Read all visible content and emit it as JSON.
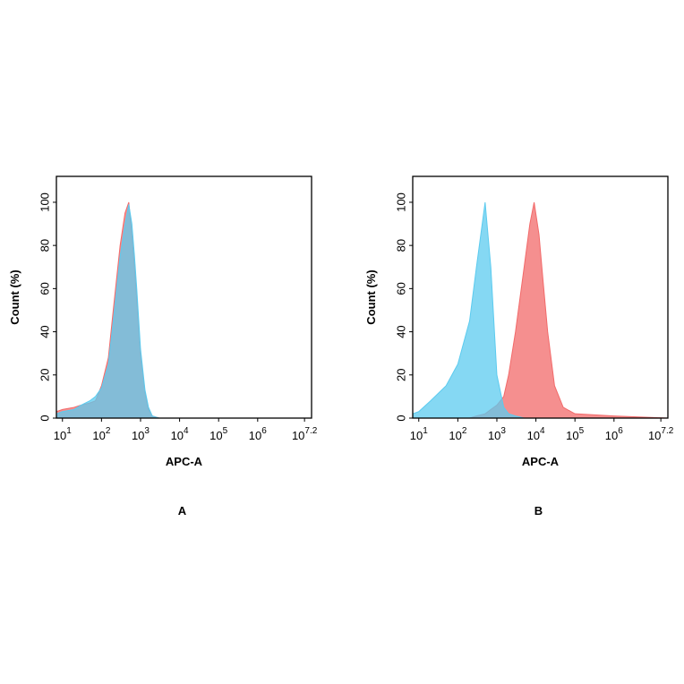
{
  "chart_data": [
    {
      "type": "area",
      "panel_label": "A",
      "xlabel": "APC-A",
      "ylabel": "Count  (%)",
      "xscale": "log",
      "xlim": [
        7,
        24000000
      ],
      "ylim": [
        0,
        112
      ],
      "xticks": [
        {
          "value": 10,
          "label": "10",
          "exponent": "1"
        },
        {
          "value": 100,
          "label": "10",
          "exponent": "2"
        },
        {
          "value": 1000,
          "label": "10",
          "exponent": "3"
        },
        {
          "value": 10000,
          "label": "10",
          "exponent": "4"
        },
        {
          "value": 100000,
          "label": "10",
          "exponent": "5"
        },
        {
          "value": 1000000,
          "label": "10",
          "exponent": "6"
        },
        {
          "value": 15848932,
          "label": "10",
          "exponent": "7.2"
        }
      ],
      "yticks": [
        0,
        20,
        40,
        60,
        80,
        100
      ],
      "x": [
        7,
        10,
        20,
        30,
        50,
        70,
        100,
        150,
        200,
        300,
        400,
        500,
        600,
        700,
        800,
        1000,
        1300,
        1600,
        2000,
        3000,
        10000,
        24000000
      ],
      "series": [
        {
          "color": "#f26a6a",
          "values": [
            3,
            4,
            5,
            6,
            7,
            8,
            15,
            28,
            50,
            80,
            95,
            100,
            85,
            70,
            55,
            30,
            12,
            4,
            1,
            0,
            0,
            0
          ]
        },
        {
          "color": "#5ccbef",
          "values": [
            2,
            3,
            4,
            6,
            8,
            10,
            14,
            25,
            45,
            75,
            90,
            99,
            90,
            75,
            60,
            32,
            13,
            5,
            1,
            0,
            0,
            0
          ]
        }
      ]
    },
    {
      "type": "area",
      "panel_label": "B",
      "xlabel": "APC-A",
      "ylabel": "Count  (%)",
      "xscale": "log",
      "xlim": [
        7,
        24000000
      ],
      "ylim": [
        0,
        112
      ],
      "xticks": [
        {
          "value": 10,
          "label": "10",
          "exponent": "1"
        },
        {
          "value": 100,
          "label": "10",
          "exponent": "2"
        },
        {
          "value": 1000,
          "label": "10",
          "exponent": "3"
        },
        {
          "value": 10000,
          "label": "10",
          "exponent": "4"
        },
        {
          "value": 100000,
          "label": "10",
          "exponent": "5"
        },
        {
          "value": 1000000,
          "label": "10",
          "exponent": "6"
        },
        {
          "value": 15848932,
          "label": "10",
          "exponent": "7.2"
        }
      ],
      "yticks": [
        0,
        20,
        40,
        60,
        80,
        100
      ],
      "x": [
        7,
        10,
        20,
        50,
        100,
        200,
        300,
        500,
        700,
        1000,
        1500,
        2000,
        3000,
        5000,
        7000,
        9000,
        12000,
        15000,
        20000,
        30000,
        50000,
        100000,
        1000000,
        24000000
      ],
      "series": [
        {
          "color": "#f26a6a",
          "values": [
            0,
            0,
            0,
            0,
            0,
            0,
            1,
            2,
            4,
            6,
            10,
            20,
            40,
            70,
            90,
            100,
            85,
            65,
            40,
            15,
            5,
            2,
            1,
            0
          ]
        },
        {
          "color": "#5ccbef",
          "values": [
            2,
            3,
            8,
            15,
            25,
            45,
            70,
            100,
            70,
            20,
            5,
            2,
            1,
            0,
            0,
            0,
            0,
            0,
            0,
            0,
            0,
            0,
            0,
            0
          ]
        }
      ]
    }
  ]
}
